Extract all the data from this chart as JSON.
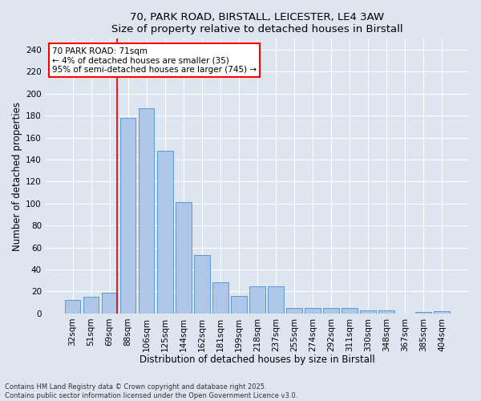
{
  "title1": "70, PARK ROAD, BIRSTALL, LEICESTER, LE4 3AW",
  "title2": "Size of property relative to detached houses in Birstall",
  "xlabel": "Distribution of detached houses by size in Birstall",
  "ylabel": "Number of detached properties",
  "categories": [
    "32sqm",
    "51sqm",
    "69sqm",
    "88sqm",
    "106sqm",
    "125sqm",
    "144sqm",
    "162sqm",
    "181sqm",
    "199sqm",
    "218sqm",
    "237sqm",
    "255sqm",
    "274sqm",
    "292sqm",
    "311sqm",
    "330sqm",
    "348sqm",
    "367sqm",
    "385sqm",
    "404sqm"
  ],
  "values": [
    12,
    15,
    19,
    178,
    187,
    148,
    101,
    53,
    28,
    16,
    25,
    25,
    5,
    5,
    5,
    5,
    3,
    3,
    0,
    1,
    2
  ],
  "bar_color": "#aec6e8",
  "bar_edge_color": "#5b9bd5",
  "vline_x_index": 2,
  "vline_color": "red",
  "annotation_text": "70 PARK ROAD: 71sqm\n← 4% of detached houses are smaller (35)\n95% of semi-detached houses are larger (745) →",
  "annotation_box_color": "white",
  "annotation_box_edge_color": "red",
  "ylim": [
    0,
    250
  ],
  "yticks": [
    0,
    20,
    40,
    60,
    80,
    100,
    120,
    140,
    160,
    180,
    200,
    220,
    240
  ],
  "footer": "Contains HM Land Registry data © Crown copyright and database right 2025.\nContains public sector information licensed under the Open Government Licence v3.0.",
  "background_color": "#dde5f0",
  "plot_background_color": "#dde5f0",
  "title_fontsize": 9.5,
  "xlabel_fontsize": 8.5,
  "ylabel_fontsize": 8.5,
  "tick_fontsize": 7.5,
  "annot_fontsize": 7.5,
  "footer_fontsize": 6.0
}
